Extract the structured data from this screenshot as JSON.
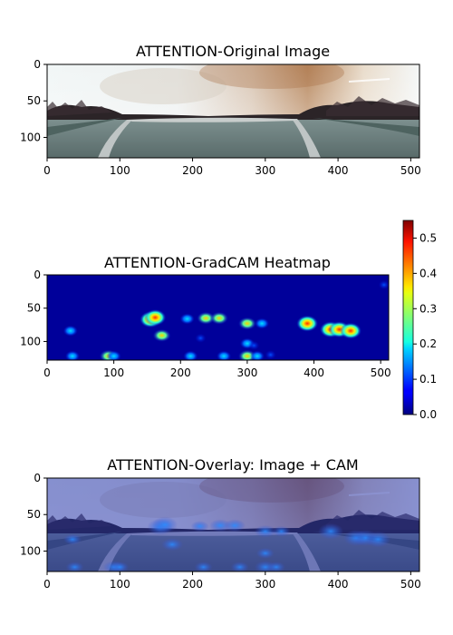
{
  "chart_data": [
    {
      "type": "image",
      "title": "ATTENTION-Original Image",
      "xlim": [
        0,
        512
      ],
      "ylim": [
        128,
        0
      ],
      "xticks": [
        0,
        100,
        200,
        300,
        400,
        500
      ],
      "yticks": [
        0,
        50,
        100
      ],
      "content": "panoramic road photo"
    },
    {
      "type": "heatmap",
      "title": "ATTENTION-GradCAM Heatmap",
      "xlim": [
        0,
        512
      ],
      "ylim": [
        128,
        0
      ],
      "xticks": [
        0,
        100,
        200,
        300,
        400,
        500
      ],
      "yticks": [
        0,
        50,
        100
      ],
      "colormap": "jet",
      "colorbar": {
        "min": 0.0,
        "max": 0.55,
        "ticks": [
          0.0,
          0.1,
          0.2,
          0.3,
          0.4,
          0.5
        ]
      },
      "hotspots": [
        {
          "x": 155,
          "y": 67,
          "value": 0.5
        },
        {
          "x": 162,
          "y": 64,
          "value": 0.42
        },
        {
          "x": 172,
          "y": 91,
          "value": 0.28
        },
        {
          "x": 210,
          "y": 66,
          "value": 0.22
        },
        {
          "x": 238,
          "y": 65,
          "value": 0.38
        },
        {
          "x": 258,
          "y": 65,
          "value": 0.35
        },
        {
          "x": 300,
          "y": 73,
          "value": 0.32
        },
        {
          "x": 322,
          "y": 73,
          "value": 0.12
        },
        {
          "x": 390,
          "y": 73,
          "value": 0.52
        },
        {
          "x": 425,
          "y": 82,
          "value": 0.45
        },
        {
          "x": 438,
          "y": 82,
          "value": 0.4
        },
        {
          "x": 455,
          "y": 84,
          "value": 0.48
        },
        {
          "x": 35,
          "y": 84,
          "value": 0.15
        },
        {
          "x": 38,
          "y": 122,
          "value": 0.12
        },
        {
          "x": 92,
          "y": 122,
          "value": 0.26
        },
        {
          "x": 100,
          "y": 122,
          "value": 0.24
        },
        {
          "x": 215,
          "y": 122,
          "value": 0.12
        },
        {
          "x": 265,
          "y": 122,
          "value": 0.22
        },
        {
          "x": 300,
          "y": 122,
          "value": 0.28
        },
        {
          "x": 315,
          "y": 122,
          "value": 0.22
        },
        {
          "x": 335,
          "y": 120,
          "value": 0.1
        },
        {
          "x": 300,
          "y": 103,
          "value": 0.12
        },
        {
          "x": 310,
          "y": 106,
          "value": 0.1
        },
        {
          "x": 230,
          "y": 95,
          "value": 0.08
        },
        {
          "x": 505,
          "y": 15,
          "value": 0.1
        }
      ]
    },
    {
      "type": "image",
      "title": "ATTENTION-Overlay: Image + CAM",
      "xlim": [
        0,
        512
      ],
      "ylim": [
        128,
        0
      ],
      "xticks": [
        0,
        100,
        200,
        300,
        400,
        500
      ],
      "yticks": [
        0,
        50,
        100
      ],
      "content": "photo blended with heatmap"
    }
  ]
}
